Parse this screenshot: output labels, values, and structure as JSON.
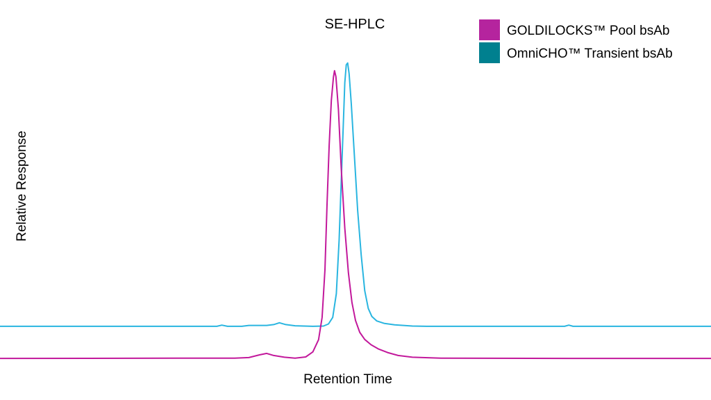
{
  "chart_data": {
    "type": "line",
    "title": "SE-HPLC",
    "xlabel": "Retention Time",
    "ylabel": "Relative Response",
    "xlim": [
      0,
      100
    ],
    "ylim": [
      0,
      100
    ],
    "grid": false,
    "axes_visible": false,
    "legend_position": "top-right",
    "series": [
      {
        "name": "GOLDILOCKS™ Pool bsAb",
        "color": "#c2189b",
        "legend_color": "#b5249e",
        "points": [
          [
            0,
            0.2
          ],
          [
            33,
            0.3
          ],
          [
            35,
            0.5
          ],
          [
            36.5,
            1.4
          ],
          [
            37.5,
            1.9
          ],
          [
            38.5,
            1.2
          ],
          [
            40,
            0.6
          ],
          [
            41.5,
            0.3
          ],
          [
            43,
            0.7
          ],
          [
            44,
            2.4
          ],
          [
            44.8,
            6.5
          ],
          [
            45.3,
            14
          ],
          [
            45.7,
            30
          ],
          [
            46.0,
            52
          ],
          [
            46.3,
            72
          ],
          [
            46.6,
            87
          ],
          [
            46.9,
            95
          ],
          [
            47.05,
            97
          ],
          [
            47.25,
            95
          ],
          [
            47.6,
            84
          ],
          [
            48.0,
            64
          ],
          [
            48.5,
            44
          ],
          [
            49.0,
            29
          ],
          [
            49.5,
            19
          ],
          [
            50.0,
            13
          ],
          [
            50.6,
            9
          ],
          [
            51.3,
            6.6
          ],
          [
            52.2,
            4.8
          ],
          [
            53.2,
            3.4
          ],
          [
            54.5,
            2.2
          ],
          [
            56,
            1.2
          ],
          [
            58,
            0.6
          ],
          [
            62,
            0.3
          ],
          [
            80,
            0.2
          ],
          [
            100,
            0.2
          ]
        ]
      },
      {
        "name": "OmniCHO™ Transient bsAb",
        "color": "#29b5e0",
        "legend_color": "#00808f",
        "points": [
          [
            0,
            11.0
          ],
          [
            30.5,
            11.0
          ],
          [
            31.2,
            11.4
          ],
          [
            32,
            11.0
          ],
          [
            34,
            11.0
          ],
          [
            35,
            11.3
          ],
          [
            37.5,
            11.3
          ],
          [
            38.5,
            11.6
          ],
          [
            39.3,
            12.2
          ],
          [
            40.2,
            11.6
          ],
          [
            41.5,
            11.2
          ],
          [
            44,
            11.0
          ],
          [
            45.5,
            11.1
          ],
          [
            46.2,
            11.8
          ],
          [
            46.8,
            14
          ],
          [
            47.3,
            22
          ],
          [
            47.7,
            40
          ],
          [
            48.0,
            60
          ],
          [
            48.3,
            80
          ],
          [
            48.5,
            93
          ],
          [
            48.7,
            99
          ],
          [
            48.9,
            99.6
          ],
          [
            49.1,
            96
          ],
          [
            49.4,
            86
          ],
          [
            49.8,
            70
          ],
          [
            50.3,
            50
          ],
          [
            50.8,
            35
          ],
          [
            51.3,
            23
          ],
          [
            51.8,
            17
          ],
          [
            52.3,
            14.3
          ],
          [
            53.0,
            12.8
          ],
          [
            54,
            12.0
          ],
          [
            55.5,
            11.5
          ],
          [
            58,
            11.1
          ],
          [
            60,
            11.0
          ],
          [
            79.4,
            11.0
          ],
          [
            80,
            11.4
          ],
          [
            80.6,
            11.0
          ],
          [
            100,
            11.0
          ]
        ]
      }
    ]
  }
}
